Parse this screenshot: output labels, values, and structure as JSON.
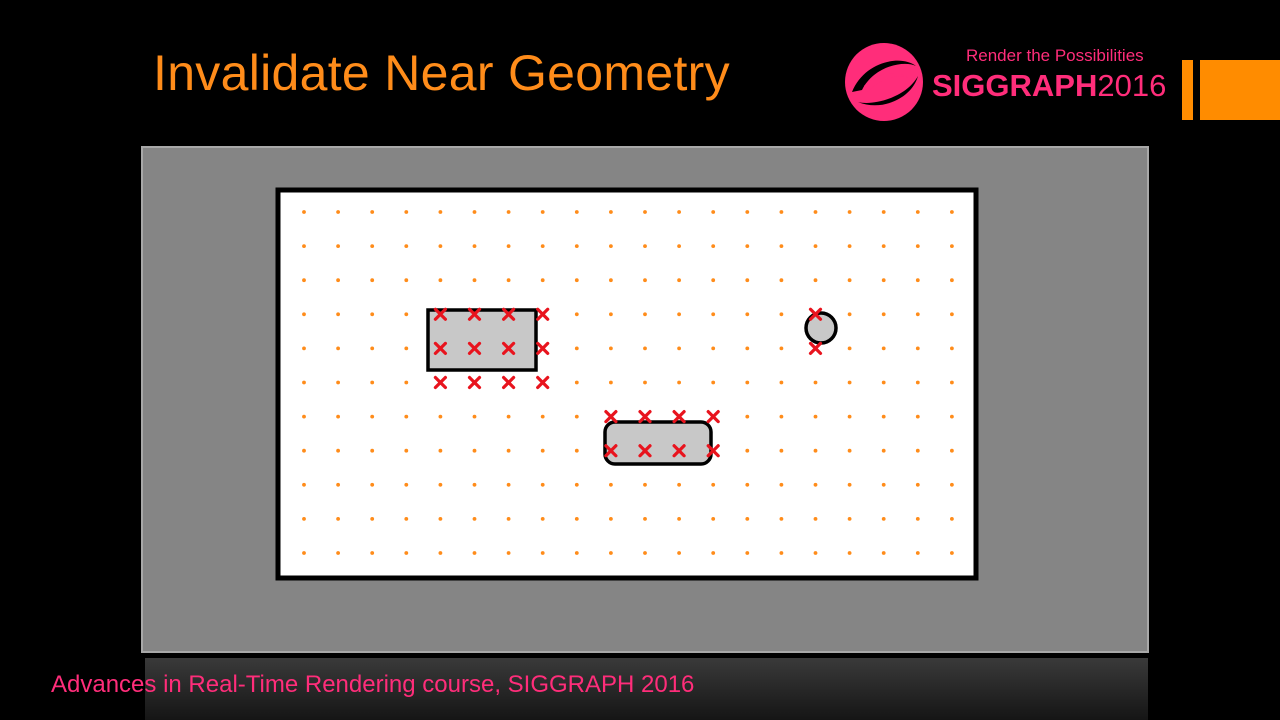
{
  "slide": {
    "title": "Invalidate Near Geometry",
    "footer": "Advances in Real-Time Rendering course, SIGGRAPH 2016"
  },
  "logo": {
    "tagline": "Render the Possibilities",
    "brand": "SIGGRAPH",
    "year": "2016",
    "color": "#ff2d7a"
  },
  "colors": {
    "title": "#ff8c1a",
    "probe_dot": "#ff8c1a",
    "invalid_marker": "#e8141e",
    "geometry_fill": "#c8c8c8",
    "frame": "#858585"
  },
  "diagram": {
    "grid_cols": 20,
    "grid_rows": 11,
    "marker_legend": "x = invalidated probe",
    "invalidated_cells": [
      [
        4,
        3
      ],
      [
        5,
        3
      ],
      [
        6,
        3
      ],
      [
        7,
        3
      ],
      [
        4,
        4
      ],
      [
        5,
        4
      ],
      [
        6,
        4
      ],
      [
        7,
        4
      ],
      [
        4,
        5
      ],
      [
        5,
        5
      ],
      [
        6,
        5
      ],
      [
        7,
        5
      ],
      [
        9,
        6
      ],
      [
        10,
        6
      ],
      [
        11,
        6
      ],
      [
        12,
        6
      ],
      [
        9,
        7
      ],
      [
        10,
        7
      ],
      [
        11,
        7
      ],
      [
        12,
        7
      ],
      [
        15,
        3
      ],
      [
        15,
        4
      ]
    ],
    "shapes": [
      {
        "name": "rectangle-obstacle",
        "kind": "rect"
      },
      {
        "name": "rounded-rect-obstacle",
        "kind": "rounded-rect"
      },
      {
        "name": "circle-obstacle",
        "kind": "circle"
      }
    ]
  }
}
